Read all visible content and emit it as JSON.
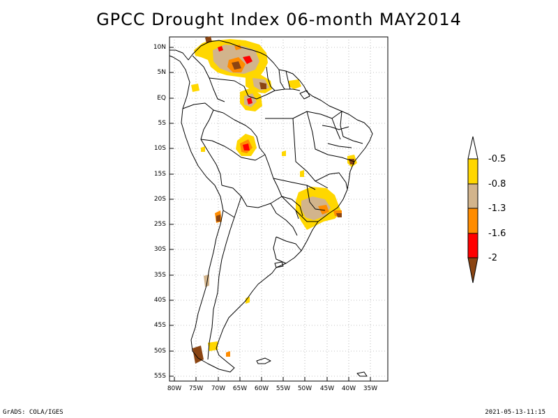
{
  "title": "GPCC Drought Index 06-month MAY2014",
  "axes": {
    "lat_labels": [
      "10N",
      "5N",
      "EQ",
      "5S",
      "10S",
      "15S",
      "20S",
      "25S",
      "30S",
      "35S",
      "40S",
      "45S",
      "50S",
      "55S"
    ],
    "lon_labels": [
      "80W",
      "75W",
      "70W",
      "65W",
      "60W",
      "55W",
      "50W",
      "45W",
      "40W",
      "35W"
    ]
  },
  "colorbar": {
    "labels": [
      "-0.5",
      "-0.8",
      "-1.3",
      "-1.6",
      "-2"
    ],
    "colors": [
      "#ffffff",
      "#ffd700",
      "#d2b48c",
      "#ff8c00",
      "#ff0000",
      "#8b4513"
    ]
  },
  "footer": {
    "left": "GrADS: COLA/IGES",
    "right": "2021-05-13-11:15"
  }
}
